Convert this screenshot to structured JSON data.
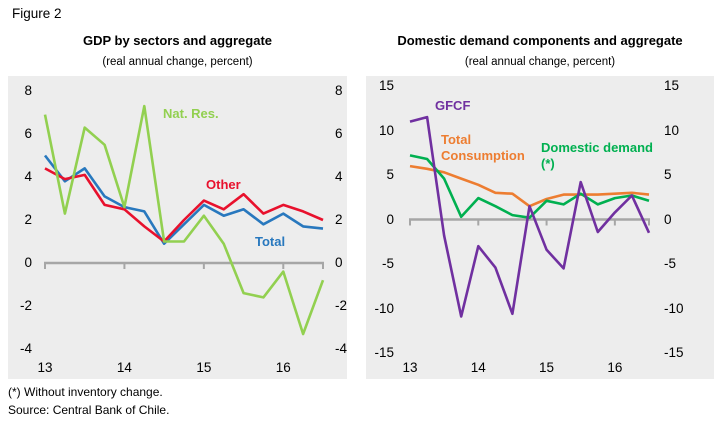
{
  "figure_label": "Figure 2",
  "footnotes": [
    "(*) Without inventory change.",
    "Source: Central Bank of Chile."
  ],
  "chart_data": [
    {
      "type": "line",
      "title": "GDP by sectors and aggregate",
      "subtitle": "(real annual change, percent)",
      "x": [
        "2013Q1",
        "2013Q2",
        "2013Q3",
        "2013Q4",
        "2014Q1",
        "2014Q2",
        "2014Q3",
        "2014Q4",
        "2015Q1",
        "2015Q2",
        "2015Q3",
        "2015Q4",
        "2016Q1",
        "2016Q2",
        "2016Q3"
      ],
      "x_tick_labels": [
        "13",
        "14",
        "15",
        "16"
      ],
      "x_tick_positions": [
        0,
        4,
        8,
        12
      ],
      "ylim": [
        -4,
        8
      ],
      "yticks": [
        8,
        6,
        4,
        2,
        0,
        -2,
        -4
      ],
      "grid": false,
      "legend_position": "inline-annotations",
      "series": [
        {
          "name": "Total",
          "color": "#2878BE",
          "values": [
            5.0,
            3.8,
            4.4,
            3.1,
            2.6,
            2.4,
            0.9,
            1.8,
            2.7,
            2.2,
            2.5,
            1.8,
            2.3,
            1.7,
            1.6
          ]
        },
        {
          "name": "Other",
          "color": "#E8112D",
          "values": [
            4.4,
            3.9,
            4.1,
            2.7,
            2.5,
            1.7,
            1.0,
            2.0,
            2.9,
            2.5,
            3.2,
            2.3,
            2.7,
            2.4,
            2.0
          ]
        },
        {
          "name": "Nat. Res.",
          "color": "#92D050",
          "values": [
            6.9,
            2.3,
            6.3,
            5.5,
            2.6,
            7.3,
            1.0,
            1.0,
            2.2,
            0.9,
            -1.4,
            -1.6,
            -0.4,
            -3.3,
            -0.8
          ]
        }
      ],
      "series_labels": [
        {
          "text": "Nat. Res.",
          "color": "#92D050",
          "x": 155,
          "y": 30
        },
        {
          "text": "Other",
          "color": "#E8112D",
          "x": 198,
          "y": 101
        },
        {
          "text": "Total",
          "color": "#2878BE",
          "x": 247,
          "y": 158
        }
      ]
    },
    {
      "type": "line",
      "title": "Domestic demand components and aggregate",
      "subtitle": "(real annual change, percent)",
      "x": [
        "2013Q1",
        "2013Q2",
        "2013Q3",
        "2013Q4",
        "2014Q1",
        "2014Q2",
        "2014Q3",
        "2014Q4",
        "2015Q1",
        "2015Q2",
        "2015Q3",
        "2015Q4",
        "2016Q1",
        "2016Q2",
        "2016Q3"
      ],
      "x_tick_labels": [
        "13",
        "14",
        "15",
        "16"
      ],
      "x_tick_positions": [
        0,
        4,
        8,
        12
      ],
      "ylim": [
        -15,
        15
      ],
      "yticks": [
        15,
        10,
        5,
        0,
        -5,
        -10,
        -15
      ],
      "grid": false,
      "legend_position": "inline-annotations",
      "series": [
        {
          "name": "Total Consumption",
          "color": "#ED7D31",
          "values": [
            6.0,
            5.7,
            5.3,
            4.6,
            3.9,
            3.0,
            2.9,
            1.5,
            2.3,
            2.8,
            2.8,
            2.8,
            2.9,
            3.0,
            2.8
          ]
        },
        {
          "name": "Domestic demand (*)",
          "color": "#00B050",
          "values": [
            7.2,
            6.8,
            4.6,
            0.3,
            2.4,
            1.5,
            0.5,
            0.2,
            2.1,
            1.7,
            2.9,
            1.7,
            2.4,
            2.7,
            2.1
          ]
        },
        {
          "name": "GFCF",
          "color": "#7030A0",
          "values": [
            11.0,
            11.5,
            -1.8,
            -10.9,
            -3.0,
            -5.4,
            -10.6,
            1.5,
            -3.4,
            -5.5,
            4.2,
            -1.4,
            0.8,
            2.7,
            -1.5
          ]
        }
      ],
      "series_labels": [
        {
          "text": "GFCF",
          "color": "#7030A0",
          "x": 69,
          "y": 22
        },
        {
          "text": "Total\nConsumption",
          "color": "#ED7D31",
          "x": 75,
          "y": 56
        },
        {
          "text": "Domestic demand\n(*)",
          "color": "#00B050",
          "x": 175,
          "y": 64
        }
      ]
    }
  ]
}
